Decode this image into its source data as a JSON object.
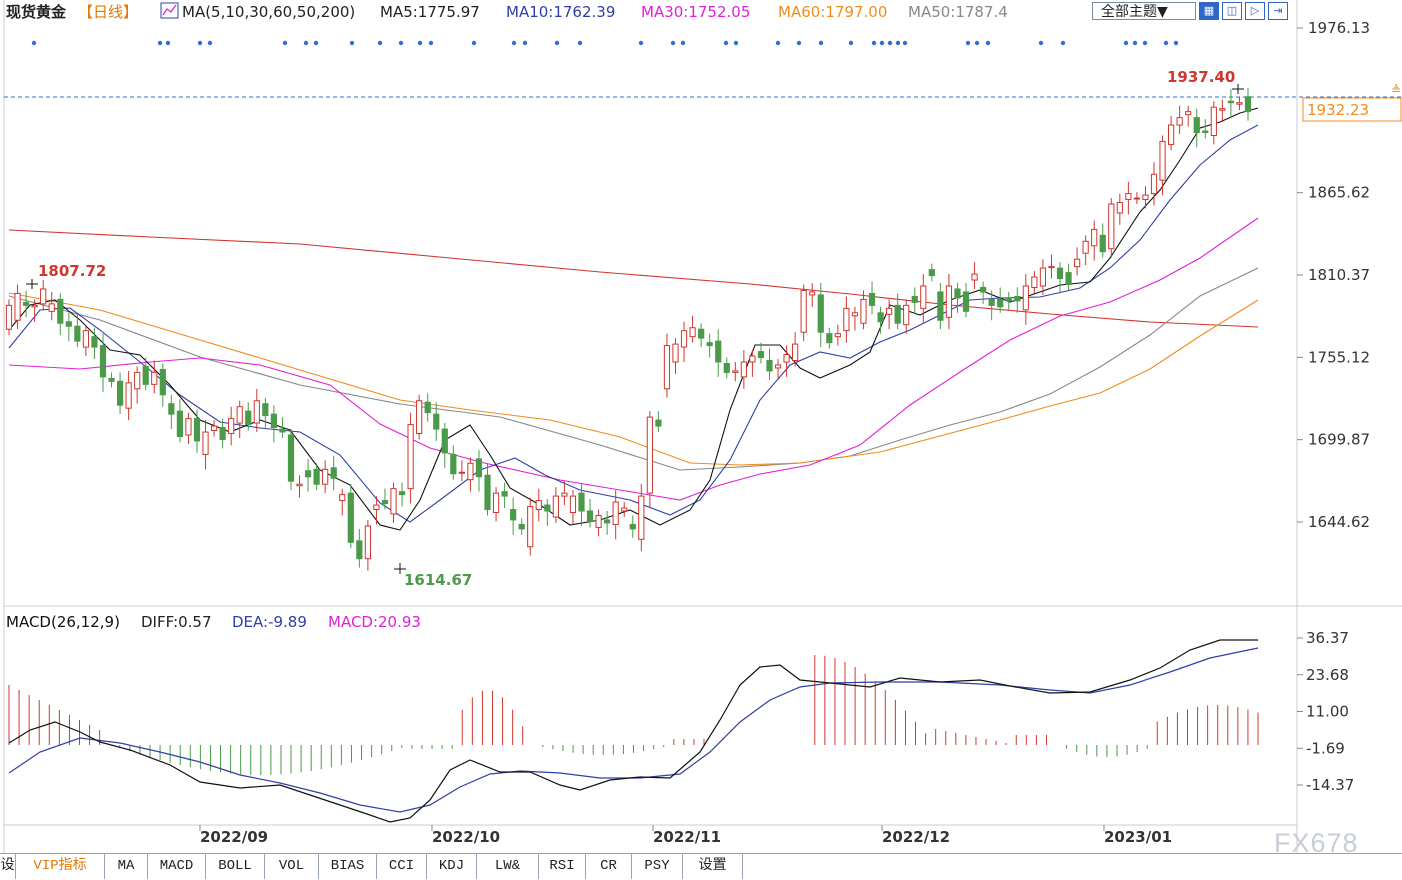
{
  "header": {
    "title": "现货黄金",
    "period": "【日线】",
    "ma_params": "MA(5,10,30,60,50,200)",
    "ma_values": [
      {
        "label": "MA5:1775.97",
        "color": "#222222"
      },
      {
        "label": "MA10:1762.39",
        "color": "#2f3fa8"
      },
      {
        "label": "MA30:1752.05",
        "color": "#e020d8"
      },
      {
        "label": "MA60:1797.00",
        "color": "#f08c1c"
      },
      {
        "label": "MA50:1787.4",
        "color": "#888888"
      }
    ]
  },
  "toolbar": {
    "theme_label": "全部主题▼",
    "icons": [
      "grid-icon",
      "split-icon",
      "play-icon",
      "expand-icon"
    ]
  },
  "macd_header": {
    "title": "MACD(26,12,9)",
    "diff": "DIFF:0.57",
    "dea": "DEA:-9.89",
    "macd": "MACD:20.93"
  },
  "tabs": [
    "设",
    "VIP指标",
    "MA",
    "MACD",
    "BOLL",
    "VOL",
    "BIAS",
    "CCI",
    "KDJ",
    "LW&",
    "RSI",
    "CR",
    "PSY",
    "设置"
  ],
  "active_tab": 1,
  "watermark": "FX678",
  "chart_data": [
    {
      "type": "candlestick",
      "title": "现货黄金 日线",
      "y_ticks": [
        "1976.13",
        "1865.62",
        "1810.37",
        "1755.12",
        "1699.87",
        "1644.62"
      ],
      "ylim": [
        1588,
        1995
      ],
      "x_ticks": [
        "2022/09",
        "2022/10",
        "2022/11",
        "2022/12",
        "2023/01"
      ],
      "annotations": {
        "high": "1937.40",
        "low": "1614.67",
        "left_high": "1807.72",
        "current_price": "1932.23"
      },
      "candles": [
        [
          1774,
          1790
        ],
        [
          1780,
          1798
        ],
        [
          1792,
          1790
        ],
        [
          1789,
          1790
        ],
        [
          1791,
          1801
        ],
        [
          1786,
          1791
        ],
        [
          1794,
          1778
        ],
        [
          1779,
          1776
        ],
        [
          1776,
          1766
        ],
        [
          1762,
          1773
        ],
        [
          1769,
          1762
        ],
        [
          1763,
          1742
        ],
        [
          1741,
          1739
        ],
        [
          1739,
          1723
        ],
        [
          1721,
          1738
        ],
        [
          1734,
          1745
        ],
        [
          1749,
          1737
        ],
        [
          1737,
          1745
        ],
        [
          1747,
          1730
        ],
        [
          1724,
          1717
        ],
        [
          1719,
          1702
        ],
        [
          1703,
          1714
        ],
        [
          1714,
          1699
        ],
        [
          1690,
          1705
        ],
        [
          1706,
          1709
        ],
        [
          1708,
          1700
        ],
        [
          1704,
          1714
        ],
        [
          1711,
          1722
        ],
        [
          1719,
          1710
        ],
        [
          1711,
          1726
        ],
        [
          1724,
          1716
        ],
        [
          1717,
          1708
        ],
        [
          1707,
          1705
        ],
        [
          1703,
          1672
        ],
        [
          1669,
          1670
        ],
        [
          1679,
          1675
        ],
        [
          1680,
          1670
        ],
        [
          1670,
          1680
        ],
        [
          1681,
          1674
        ],
        [
          1659,
          1663
        ],
        [
          1664,
          1631
        ],
        [
          1632,
          1620
        ],
        [
          1620,
          1642
        ],
        [
          1653,
          1656
        ],
        [
          1659,
          1657
        ],
        [
          1650,
          1667
        ],
        [
          1665,
          1663
        ],
        [
          1667,
          1710
        ],
        [
          1704,
          1726
        ],
        [
          1725,
          1718
        ],
        [
          1717,
          1707
        ],
        [
          1707,
          1691
        ],
        [
          1690,
          1677
        ],
        [
          1678,
          1678
        ],
        [
          1673,
          1684
        ],
        [
          1687,
          1675
        ],
        [
          1676,
          1653
        ],
        [
          1651,
          1664
        ],
        [
          1665,
          1662
        ],
        [
          1653,
          1646
        ],
        [
          1643,
          1640
        ],
        [
          1628,
          1655
        ],
        [
          1653,
          1659
        ],
        [
          1656,
          1652
        ],
        [
          1648,
          1662
        ],
        [
          1662,
          1664
        ],
        [
          1651,
          1662
        ],
        [
          1664,
          1652
        ],
        [
          1652,
          1645
        ],
        [
          1641,
          1649
        ],
        [
          1646,
          1644
        ],
        [
          1643,
          1658
        ],
        [
          1652,
          1654
        ],
        [
          1643,
          1640
        ],
        [
          1633,
          1662
        ],
        [
          1664,
          1715
        ],
        [
          1713,
          1709
        ],
        [
          1734,
          1763
        ],
        [
          1752,
          1764
        ],
        [
          1762,
          1773
        ],
        [
          1769,
          1775
        ],
        [
          1774,
          1768
        ],
        [
          1765,
          1763
        ],
        [
          1766,
          1752
        ],
        [
          1751,
          1745
        ],
        [
          1745,
          1746
        ],
        [
          1742,
          1752
        ],
        [
          1752,
          1756
        ],
        [
          1759,
          1755
        ],
        [
          1753,
          1746
        ],
        [
          1748,
          1750
        ],
        [
          1752,
          1757
        ],
        [
          1753,
          1764
        ],
        [
          1772,
          1800
        ],
        [
          1797,
          1799
        ],
        [
          1797,
          1772
        ],
        [
          1771,
          1765
        ],
        [
          1769,
          1771
        ],
        [
          1773,
          1788
        ],
        [
          1783,
          1785
        ],
        [
          1778,
          1794
        ],
        [
          1798,
          1790
        ],
        [
          1785,
          1779
        ],
        [
          1784,
          1788
        ],
        [
          1790,
          1778
        ],
        [
          1777,
          1790
        ],
        [
          1796,
          1792
        ],
        [
          1788,
          1803
        ],
        [
          1814,
          1810
        ],
        [
          1799,
          1780
        ],
        [
          1782,
          1803
        ],
        [
          1801,
          1795
        ],
        [
          1799,
          1786
        ],
        [
          1807,
          1811
        ],
        [
          1802,
          1799
        ],
        [
          1794,
          1790
        ],
        [
          1794,
          1789
        ],
        [
          1795,
          1793
        ],
        [
          1796,
          1793
        ],
        [
          1787,
          1803
        ],
        [
          1802,
          1809
        ],
        [
          1803,
          1815
        ],
        [
          1816,
          1816
        ],
        [
          1815,
          1808
        ],
        [
          1812,
          1804
        ],
        [
          1816,
          1821
        ],
        [
          1825,
          1833
        ],
        [
          1830,
          1841
        ],
        [
          1837,
          1826
        ],
        [
          1828,
          1858
        ],
        [
          1852,
          1859
        ],
        [
          1861,
          1865
        ],
        [
          1862,
          1862
        ],
        [
          1861,
          1864
        ],
        [
          1865,
          1878
        ],
        [
          1874,
          1900
        ],
        [
          1898,
          1911
        ],
        [
          1911,
          1916
        ],
        [
          1918,
          1920
        ],
        [
          1916,
          1906
        ],
        [
          1907,
          1906
        ],
        [
          1904,
          1923
        ],
        [
          1921,
          1922
        ],
        [
          1927,
          1926
        ],
        [
          1925,
          1926
        ],
        [
          1930,
          1920
        ]
      ]
    },
    {
      "type": "macd",
      "title": "MACD(26,12,9)",
      "y_ticks": [
        "36.37",
        "23.68",
        "11.00",
        "-1.69",
        "-14.37"
      ],
      "ylim": [
        -27,
        40
      ]
    }
  ]
}
